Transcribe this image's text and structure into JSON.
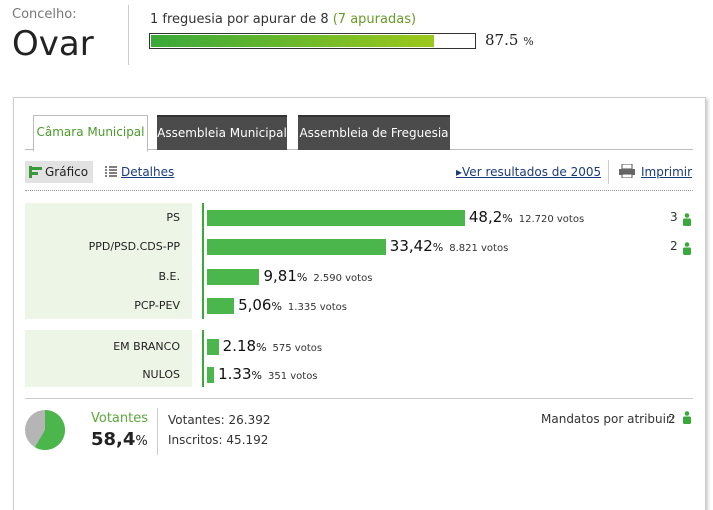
{
  "header": {
    "label": "Concelho:",
    "name": "Ovar",
    "progress_text": "1 freguesia por apurar de 8",
    "progress_note": "(7 apuradas)",
    "progress_value": 87.5,
    "percent_sign": "%"
  },
  "tabs": [
    "Câmara Municipal",
    "Assembleia Municipal",
    "Assembleia de Freguesia"
  ],
  "toolbar": {
    "chart": "Gráfico",
    "details": "Detalhes",
    "previous": "Ver resultados de 2005",
    "print": "Imprimir"
  },
  "results": {
    "parties": [
      {
        "name": "PS",
        "value": 48.2,
        "value_label": "48,2",
        "votes": "12.720 votos",
        "seats": 3
      },
      {
        "name": "PPD/PSD.CDS-PP",
        "value": 33.42,
        "value_label": "33,42",
        "votes": "8.821 votos",
        "seats": 2
      },
      {
        "name": "B.E.",
        "value": 9.81,
        "value_label": "9,81",
        "votes": "2.590 votos"
      },
      {
        "name": "PCP-PEV",
        "value": 5.06,
        "value_label": "5,06",
        "votes": "1.335 votos"
      }
    ],
    "blank": [
      {
        "name": "EM BRANCO",
        "value": 2.18,
        "value_label": "2.18",
        "votes": "575 votos"
      },
      {
        "name": "NULOS",
        "value": 1.33,
        "value_label": "1.33",
        "votes": "351 votos"
      }
    ]
  },
  "summary": {
    "turnout_label": "Votantes",
    "turnout": 58.4,
    "turnout_label_value": "58,4",
    "voters": "Votantes: 26.392",
    "registered": "Inscritos: 45.192",
    "pending_label": "Mandatos por atribuir:",
    "pending": 2
  }
}
